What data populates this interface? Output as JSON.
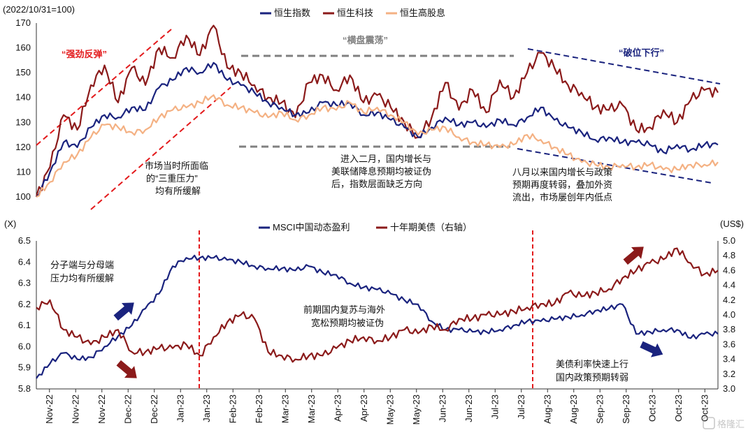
{
  "chart_data": [
    {
      "type": "line",
      "title": "",
      "index_note": "(2022/10/31=100)",
      "ylim": [
        100,
        170
      ],
      "yticks": [
        100,
        110,
        120,
        130,
        140,
        150,
        160,
        170
      ],
      "colors": {
        "hsi": "#1a237e",
        "hstech": "#8b1a1a",
        "hshdy": "#f4b183"
      },
      "legend": [
        "恒生指数",
        "恒生科技",
        "恒生高股息"
      ],
      "phase_labels": [
        "“强劲反弹”",
        "“横盘震荡”",
        "“破位下行”"
      ],
      "annotations": [
        [
          "市场当时所面临",
          "的“三重压力”",
          "均有所缓解"
        ],
        [
          "进入二月，国内增长与",
          "美联储降息预期均被证伪",
          "后，指数层面缺乏方向"
        ],
        [
          "八月以来国内增长与政策",
          "预期再度转弱，叠加外资",
          "流出，市场屡创年内低点"
        ]
      ],
      "series": [
        {
          "name": "恒生科技",
          "x": [
            0,
            0.02,
            0.04,
            0.06,
            0.08,
            0.1,
            0.12,
            0.14,
            0.16,
            0.18,
            0.2,
            0.22,
            0.24,
            0.26,
            0.28,
            0.3,
            0.32,
            0.34,
            0.36,
            0.38,
            0.4,
            0.42,
            0.44,
            0.46,
            0.48,
            0.5,
            0.52,
            0.54,
            0.56,
            0.58,
            0.6,
            0.62,
            0.64,
            0.66,
            0.68,
            0.7,
            0.72,
            0.74,
            0.76,
            0.78,
            0.8,
            0.82,
            0.84,
            0.86,
            0.88,
            0.9,
            0.92,
            0.94,
            0.96,
            0.98,
            1.0
          ],
          "values": [
            100,
            112,
            133,
            127,
            145,
            153,
            138,
            152,
            145,
            160,
            156,
            165,
            157,
            169,
            152,
            150,
            145,
            140,
            138,
            132,
            146,
            149,
            143,
            149,
            138,
            141,
            136,
            130,
            124,
            132,
            146,
            135,
            143,
            134,
            147,
            140,
            150,
            158,
            152,
            145,
            142,
            136,
            135,
            137,
            127,
            128,
            135,
            130,
            139,
            143,
            142
          ]
        },
        {
          "name": "恒生指数",
          "x": [
            0,
            0.02,
            0.04,
            0.06,
            0.08,
            0.1,
            0.12,
            0.14,
            0.16,
            0.18,
            0.2,
            0.22,
            0.24,
            0.26,
            0.28,
            0.3,
            0.32,
            0.34,
            0.36,
            0.38,
            0.4,
            0.42,
            0.44,
            0.46,
            0.48,
            0.5,
            0.52,
            0.54,
            0.56,
            0.58,
            0.6,
            0.62,
            0.64,
            0.66,
            0.68,
            0.7,
            0.72,
            0.74,
            0.76,
            0.78,
            0.8,
            0.82,
            0.84,
            0.86,
            0.88,
            0.9,
            0.92,
            0.94,
            0.96,
            0.98,
            1.0
          ],
          "values": [
            100,
            110,
            122,
            120,
            128,
            133,
            132,
            136,
            135,
            144,
            147,
            152,
            150,
            154,
            147,
            145,
            142,
            138,
            136,
            133,
            134,
            138,
            137,
            138,
            133,
            134,
            131,
            128,
            124,
            128,
            132,
            129,
            130,
            128,
            131,
            129,
            132,
            136,
            131,
            128,
            126,
            123,
            124,
            122,
            122,
            121,
            118,
            121,
            119,
            121,
            121
          ]
        },
        {
          "name": "恒生高股息",
          "x": [
            0,
            0.02,
            0.04,
            0.06,
            0.08,
            0.1,
            0.12,
            0.14,
            0.16,
            0.18,
            0.2,
            0.22,
            0.24,
            0.26,
            0.28,
            0.3,
            0.32,
            0.34,
            0.36,
            0.38,
            0.4,
            0.42,
            0.44,
            0.46,
            0.48,
            0.5,
            0.52,
            0.54,
            0.56,
            0.58,
            0.6,
            0.62,
            0.64,
            0.66,
            0.68,
            0.7,
            0.72,
            0.74,
            0.76,
            0.78,
            0.8,
            0.82,
            0.84,
            0.86,
            0.88,
            0.9,
            0.92,
            0.94,
            0.96,
            0.98,
            1.0
          ],
          "values": [
            100,
            106,
            114,
            117,
            124,
            129,
            128,
            126,
            127,
            132,
            135,
            136,
            138,
            141,
            137,
            136,
            134,
            132,
            134,
            131,
            133,
            136,
            135,
            138,
            134,
            136,
            133,
            130,
            125,
            127,
            128,
            124,
            122,
            121,
            120,
            121,
            125,
            123,
            120,
            117,
            114,
            113,
            112,
            113,
            112,
            113,
            111,
            111,
            113,
            113,
            114
          ]
        }
      ]
    },
    {
      "type": "line",
      "title": "",
      "ylabel_left": "(X)",
      "ylabel_right": "(US$)",
      "ylim": [
        5.8,
        6.5
      ],
      "yticks": [
        "5.8",
        "5.9",
        "6.0",
        "6.1",
        "6.2",
        "6.3",
        "6.4",
        "6.5"
      ],
      "y2lim": [
        3.0,
        5.0
      ],
      "y2ticks": [
        "3.0",
        "3.2",
        "3.4",
        "3.6",
        "3.8",
        "4.0",
        "4.2",
        "4.4",
        "4.6",
        "4.8",
        "5.0"
      ],
      "colors": {
        "pe": "#1a237e",
        "ust": "#8b1a1a"
      },
      "legend": [
        "MSCI中国动态盈利",
        "十年期美债（右轴）"
      ],
      "categories": [
        "Nov-22",
        "Nov-22",
        "Nov-22",
        "Dec-22",
        "Dec-22",
        "Jan-23",
        "Jan-23",
        "Feb-23",
        "Feb-23",
        "Mar-23",
        "Mar-23",
        "Apr-23",
        "Apr-23",
        "May-23",
        "May-23",
        "Jun-23",
        "Jun-23",
        "Jul-23",
        "Jul-23",
        "Aug-23",
        "Aug-23",
        "Sep-23",
        "Sep-23",
        "Oct-23",
        "Oct-23",
        "Oct-23"
      ],
      "annotations": [
        [
          "分子端与分母端",
          "压力均有所缓解"
        ],
        [
          "前期国内复苏与海外",
          "宽松预期均被证伪"
        ],
        [
          "美债利率快速上行",
          "国内政策预期转弱"
        ]
      ],
      "series": [
        {
          "name": "MSCI中国动态盈利",
          "axis": "left",
          "x": [
            0,
            0.02,
            0.04,
            0.06,
            0.08,
            0.1,
            0.12,
            0.14,
            0.16,
            0.18,
            0.2,
            0.22,
            0.24,
            0.26,
            0.28,
            0.3,
            0.32,
            0.34,
            0.36,
            0.38,
            0.4,
            0.42,
            0.44,
            0.46,
            0.48,
            0.5,
            0.52,
            0.54,
            0.56,
            0.58,
            0.6,
            0.62,
            0.64,
            0.66,
            0.68,
            0.7,
            0.72,
            0.74,
            0.76,
            0.78,
            0.8,
            0.82,
            0.84,
            0.86,
            0.88,
            0.9,
            0.92,
            0.94,
            0.96,
            0.98,
            1.0
          ],
          "values": [
            5.85,
            5.92,
            5.97,
            5.94,
            5.95,
            6.0,
            6.05,
            6.1,
            6.18,
            6.25,
            6.38,
            6.42,
            6.42,
            6.42,
            6.41,
            6.4,
            6.38,
            6.37,
            6.37,
            6.36,
            6.38,
            6.35,
            6.34,
            6.3,
            6.28,
            6.27,
            6.25,
            6.22,
            6.2,
            6.12,
            6.08,
            6.08,
            6.07,
            6.07,
            6.08,
            6.1,
            6.12,
            6.12,
            6.13,
            6.14,
            6.15,
            6.17,
            6.18,
            6.2,
            6.06,
            6.07,
            6.08,
            6.08,
            6.04,
            6.06,
            6.06
          ]
        },
        {
          "name": "十年期美债（右轴）",
          "axis": "right",
          "x": [
            0,
            0.02,
            0.04,
            0.06,
            0.08,
            0.1,
            0.12,
            0.14,
            0.16,
            0.18,
            0.2,
            0.22,
            0.24,
            0.26,
            0.28,
            0.3,
            0.32,
            0.34,
            0.36,
            0.38,
            0.4,
            0.42,
            0.44,
            0.46,
            0.48,
            0.5,
            0.52,
            0.54,
            0.56,
            0.58,
            0.6,
            0.62,
            0.64,
            0.66,
            0.68,
            0.7,
            0.72,
            0.74,
            0.76,
            0.78,
            0.8,
            0.82,
            0.84,
            0.86,
            0.88,
            0.9,
            0.92,
            0.94,
            0.96,
            0.98,
            1.0
          ],
          "values": [
            4.1,
            4.2,
            3.8,
            3.7,
            3.6,
            3.7,
            3.8,
            3.5,
            3.5,
            3.55,
            3.55,
            3.6,
            3.45,
            3.7,
            3.9,
            4.0,
            3.95,
            3.5,
            3.45,
            3.4,
            3.45,
            3.45,
            3.55,
            3.65,
            3.7,
            3.65,
            3.7,
            3.8,
            3.75,
            3.85,
            3.8,
            3.95,
            3.95,
            4.0,
            4.0,
            4.05,
            4.1,
            4.15,
            4.15,
            4.3,
            4.25,
            4.3,
            4.35,
            4.5,
            4.6,
            4.7,
            4.75,
            4.9,
            4.7,
            4.55,
            4.6
          ]
        }
      ]
    }
  ],
  "watermark": "格隆汇"
}
